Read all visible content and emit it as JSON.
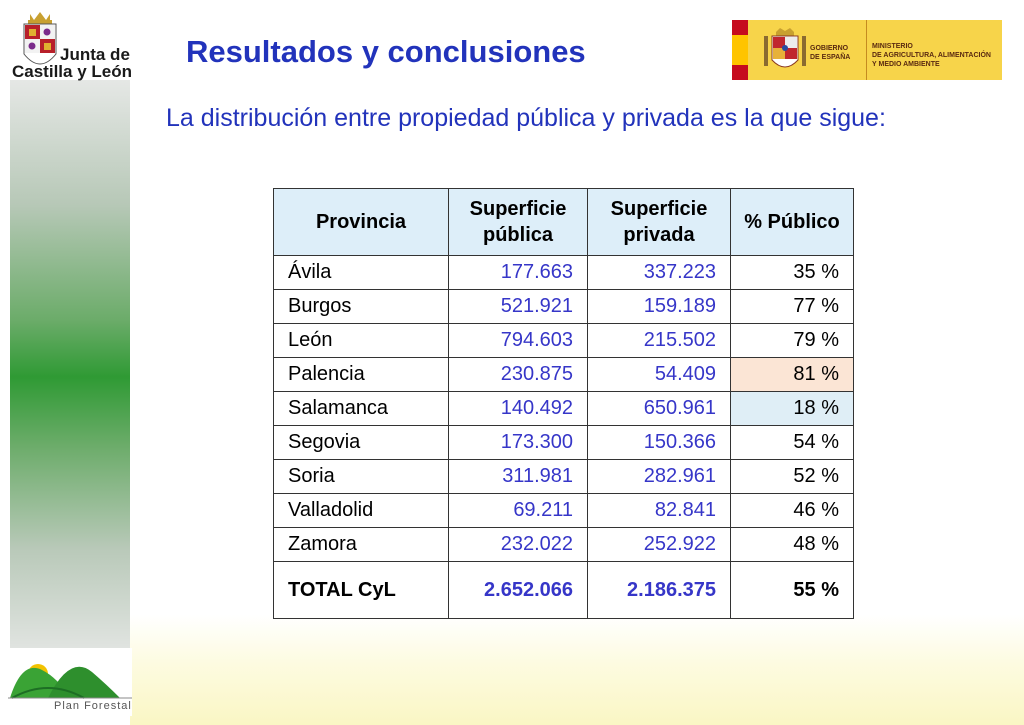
{
  "logos": {
    "jcyl": {
      "line1": "Junta de",
      "line2": "Castilla y León"
    },
    "gobierno": {
      "left": "GOBIERNO\nDE ESPAÑA",
      "right": "MINISTERIO\nDE AGRICULTURA, ALIMENTACIÓN\nY MEDIO AMBIENTE"
    },
    "plan": {
      "text": "Plan Forestal"
    }
  },
  "title": "Resultados y conclusiones",
  "subtitle": "La distribución entre propiedad pública y privada es la que sigue:",
  "table": {
    "headers": [
      "Provincia",
      "Superficie pública",
      "Superficie privada",
      "% Público"
    ],
    "rows": [
      {
        "provincia": "Ávila",
        "publica": "177.663",
        "privada": "337.223",
        "pct": "35 %"
      },
      {
        "provincia": "Burgos",
        "publica": "521.921",
        "privada": "159.189",
        "pct": "77 %"
      },
      {
        "provincia": "León",
        "publica": "794.603",
        "privada": "215.502",
        "pct": "79 %"
      },
      {
        "provincia": "Palencia",
        "publica": "230.875",
        "privada": "54.409",
        "pct": "81 %"
      },
      {
        "provincia": "Salamanca",
        "publica": "140.492",
        "privada": "650.961",
        "pct": "18 %"
      },
      {
        "provincia": "Segovia",
        "publica": "173.300",
        "privada": "150.366",
        "pct": "54 %"
      },
      {
        "provincia": "Soria",
        "publica": "311.981",
        "privada": "282.961",
        "pct": "52 %"
      },
      {
        "provincia": "Valladolid",
        "publica": "69.211",
        "privada": "82.841",
        "pct": "46 %"
      },
      {
        "provincia": "Zamora",
        "publica": "232.022",
        "privada": "252.922",
        "pct": "48 %"
      }
    ],
    "total": {
      "provincia": "TOTAL CyL",
      "publica": "2.652.066",
      "privada": "2.186.375",
      "pct": "55 %"
    }
  },
  "colors": {
    "title": "#2233bb",
    "numbers": "#3636c8",
    "header_bg": "#ddeef9",
    "highlight_max": "#fbe5d5",
    "highlight_min": "#dfeef6"
  }
}
